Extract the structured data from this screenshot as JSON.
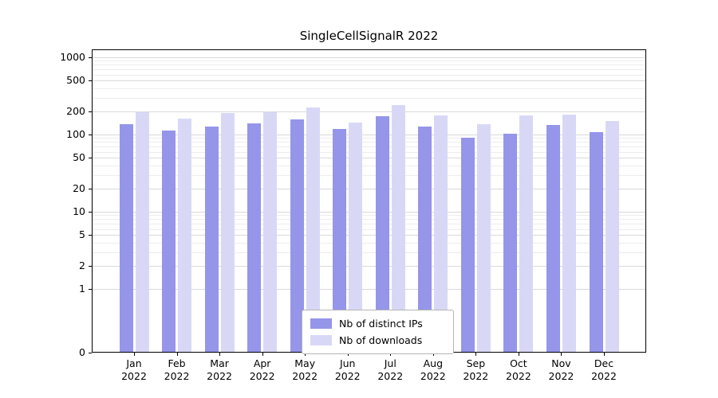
{
  "chart_data": {
    "type": "bar",
    "title": "SingleCellSignalR 2022",
    "categories": [
      "Jan",
      "Feb",
      "Mar",
      "Apr",
      "May",
      "Jun",
      "Jul",
      "Aug",
      "Sep",
      "Oct",
      "Nov",
      "Dec"
    ],
    "year": "2022",
    "series": [
      {
        "name": "Nb of distinct IPs",
        "color": "#9595ea",
        "values": [
          135,
          112,
          128,
          138,
          158,
          118,
          172,
          126,
          91,
          103,
          132,
          108
        ]
      },
      {
        "name": "Nb of downloads",
        "color": "#d8d8f6",
        "values": [
          195,
          162,
          190,
          196,
          222,
          142,
          238,
          176,
          135,
          177,
          183,
          148
        ]
      }
    ],
    "y_ticks": [
      0,
      1,
      2,
      5,
      10,
      20,
      50,
      100,
      200,
      500,
      1000
    ],
    "y_scale": "symlog",
    "ylim": [
      0,
      1270
    ],
    "grid": true,
    "legend_position": "lower center"
  }
}
